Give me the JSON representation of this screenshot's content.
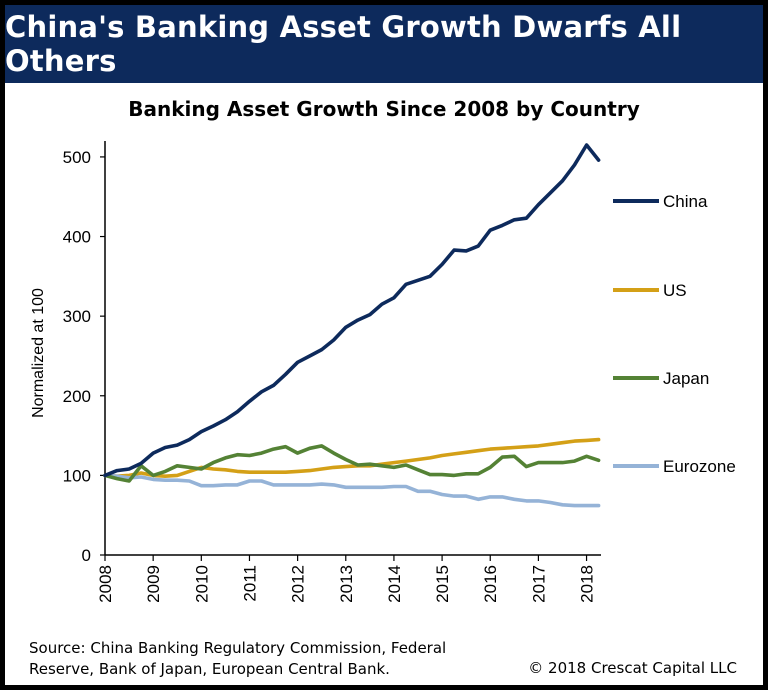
{
  "header": {
    "banner_title": "China's Banking Asset Growth Dwarfs All Others"
  },
  "footer": {
    "source_line1": "Source: China Banking Regulatory Commission,  Federal",
    "source_line2": "Reserve,  Bank of Japan, European Central Bank.",
    "copyright": "© 2018 Crescat Capital LLC"
  },
  "chart_data": {
    "type": "line",
    "title": "Banking Asset Growth Since 2008 by Country",
    "xlabel": "",
    "ylabel": "Normalized at 100",
    "xlim": [
      2008,
      2018.3
    ],
    "ylim": [
      0,
      520
    ],
    "x_ticks": [
      "2008",
      "2009",
      "2010",
      "2011",
      "2012",
      "2013",
      "2014",
      "2015",
      "2016",
      "2017",
      "2018"
    ],
    "y_ticks": [
      "0",
      "100",
      "200",
      "300",
      "400",
      "500"
    ],
    "grid": false,
    "legend_position": "right",
    "series": [
      {
        "name": "China",
        "color": "#0d2a5c",
        "x": [
          2008,
          2008.25,
          2008.5,
          2008.75,
          2009,
          2009.25,
          2009.5,
          2009.75,
          2010,
          2010.25,
          2010.5,
          2010.75,
          2011,
          2011.25,
          2011.5,
          2011.75,
          2012,
          2012.25,
          2012.5,
          2012.75,
          2013,
          2013.25,
          2013.5,
          2013.75,
          2014,
          2014.25,
          2014.5,
          2014.75,
          2015,
          2015.25,
          2015.5,
          2015.75,
          2016,
          2016.25,
          2016.5,
          2016.75,
          2017,
          2017.25,
          2017.5,
          2017.75,
          2018,
          2018.25
        ],
        "values": [
          100,
          106,
          108,
          115,
          128,
          135,
          138,
          145,
          155,
          162,
          170,
          180,
          193,
          205,
          213,
          227,
          242,
          250,
          258,
          270,
          286,
          295,
          302,
          315,
          323,
          340,
          345,
          350,
          365,
          383,
          382,
          388,
          408,
          414,
          421,
          423,
          440,
          455,
          470,
          490,
          515,
          496
        ]
      },
      {
        "name": "US",
        "color": "#d4a017",
        "x": [
          2008,
          2008.25,
          2008.5,
          2008.75,
          2009,
          2009.25,
          2009.5,
          2009.75,
          2010,
          2010.25,
          2010.5,
          2010.75,
          2011,
          2011.25,
          2011.5,
          2011.75,
          2012,
          2012.25,
          2012.5,
          2012.75,
          2013,
          2013.25,
          2013.5,
          2013.75,
          2014,
          2014.25,
          2014.5,
          2014.75,
          2015,
          2015.25,
          2015.5,
          2015.75,
          2016,
          2016.25,
          2016.5,
          2016.75,
          2017,
          2017.25,
          2017.5,
          2017.75,
          2018,
          2018.25
        ],
        "values": [
          100,
          99,
          100,
          103,
          100,
          99,
          100,
          105,
          110,
          108,
          107,
          105,
          104,
          104,
          104,
          104,
          105,
          106,
          108,
          110,
          111,
          112,
          112,
          114,
          116,
          118,
          120,
          122,
          125,
          127,
          129,
          131,
          133,
          134,
          135,
          136,
          137,
          139,
          141,
          143,
          144,
          145
        ]
      },
      {
        "name": "Japan",
        "color": "#548235",
        "x": [
          2008,
          2008.25,
          2008.5,
          2008.75,
          2009,
          2009.25,
          2009.5,
          2009.75,
          2010,
          2010.25,
          2010.5,
          2010.75,
          2011,
          2011.25,
          2011.5,
          2011.75,
          2012,
          2012.25,
          2012.5,
          2012.75,
          2013,
          2013.25,
          2013.5,
          2013.75,
          2014,
          2014.25,
          2014.5,
          2014.75,
          2015,
          2015.25,
          2015.5,
          2015.75,
          2016,
          2016.25,
          2016.5,
          2016.75,
          2017,
          2017.25,
          2017.5,
          2017.75,
          2018,
          2018.25
        ],
        "values": [
          100,
          96,
          93,
          112,
          100,
          105,
          112,
          110,
          108,
          116,
          122,
          126,
          125,
          128,
          133,
          136,
          128,
          134,
          137,
          128,
          120,
          113,
          114,
          112,
          110,
          113,
          107,
          101,
          101,
          100,
          102,
          102,
          110,
          123,
          124,
          111,
          116,
          116,
          116,
          118,
          124,
          119
        ]
      },
      {
        "name": "Eurozone",
        "color": "#95b3d7",
        "x": [
          2008,
          2008.25,
          2008.5,
          2008.75,
          2009,
          2009.25,
          2009.5,
          2009.75,
          2010,
          2010.25,
          2010.5,
          2010.75,
          2011,
          2011.25,
          2011.5,
          2011.75,
          2012,
          2012.25,
          2012.5,
          2012.75,
          2013,
          2013.25,
          2013.5,
          2013.75,
          2014,
          2014.25,
          2014.5,
          2014.75,
          2015,
          2015.25,
          2015.5,
          2015.75,
          2016,
          2016.25,
          2016.5,
          2016.75,
          2017,
          2017.25,
          2017.5,
          2017.75,
          2018,
          2018.25
        ],
        "values": [
          100,
          99,
          97,
          98,
          95,
          94,
          94,
          93,
          87,
          87,
          88,
          88,
          93,
          93,
          88,
          88,
          88,
          88,
          89,
          88,
          85,
          85,
          85,
          85,
          86,
          86,
          80,
          80,
          76,
          74,
          74,
          70,
          73,
          73,
          70,
          68,
          68,
          66,
          63,
          62,
          62,
          62
        ]
      }
    ]
  }
}
